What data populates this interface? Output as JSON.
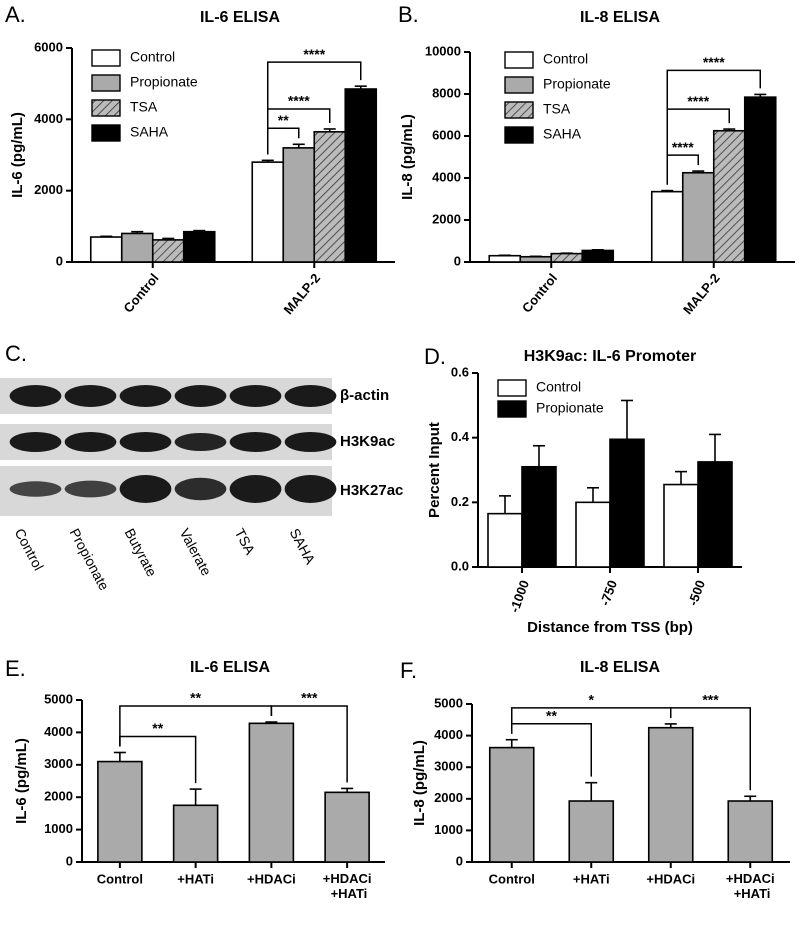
{
  "chart_data": [
    {
      "type": "bar",
      "panel": "A.",
      "title": "IL-6 ELISA",
      "y_label": "IL-6 (pg/mL)",
      "categories": [
        "Control",
        "MALP-2"
      ],
      "series": [
        {
          "name": "Control",
          "color": "#ffffff",
          "values": [
            700,
            2800
          ],
          "errors": [
            20,
            50
          ]
        },
        {
          "name": "Propionate",
          "color": "#aaaaaa",
          "values": [
            800,
            3200
          ],
          "errors": [
            50,
            100
          ]
        },
        {
          "name": "TSA",
          "color": "#bbbbbb",
          "pattern": "hatch",
          "values": [
            620,
            3650
          ],
          "errors": [
            40,
            80
          ]
        },
        {
          "name": "SAHA",
          "color": "#000000",
          "values": [
            850,
            4850
          ],
          "errors": [
            30,
            80
          ]
        }
      ],
      "annotations": [
        "**",
        "****",
        "****"
      ],
      "ylim": [
        0,
        6000
      ],
      "yticks": [
        0,
        2000,
        4000,
        6000
      ]
    },
    {
      "type": "bar",
      "panel": "B.",
      "title": "IL-8 ELISA",
      "y_label": "IL-8 (pg/mL)",
      "categories": [
        "Control",
        "MALP-2"
      ],
      "series": [
        {
          "name": "Control",
          "color": "#ffffff",
          "values": [
            300,
            3350
          ],
          "errors": [
            20,
            50
          ]
        },
        {
          "name": "Propionate",
          "color": "#aaaaaa",
          "values": [
            250,
            4250
          ],
          "errors": [
            20,
            80
          ]
        },
        {
          "name": "TSA",
          "color": "#bbbbbb",
          "pattern": "hatch",
          "values": [
            400,
            6250
          ],
          "errors": [
            20,
            80
          ]
        },
        {
          "name": "SAHA",
          "color": "#000000",
          "values": [
            550,
            7850
          ],
          "errors": [
            30,
            130
          ]
        }
      ],
      "annotations": [
        "****",
        "****",
        "****"
      ],
      "ylim": [
        0,
        10000
      ],
      "yticks": [
        0,
        2000,
        4000,
        6000,
        8000,
        10000
      ]
    },
    {
      "type": "bar",
      "panel": "D.",
      "title": "H3K9ac: IL-6 Promoter",
      "y_label": "Percent Input",
      "x_label": "Distance from TSS (bp)",
      "categories": [
        "-1000",
        "-750",
        "-500"
      ],
      "series": [
        {
          "name": "Control",
          "color": "#ffffff",
          "values": [
            0.165,
            0.2,
            0.255
          ],
          "errors": [
            0.055,
            0.045,
            0.04
          ]
        },
        {
          "name": "Propionate",
          "color": "#000000",
          "values": [
            0.31,
            0.395,
            0.325
          ],
          "errors": [
            0.065,
            0.12,
            0.085
          ]
        }
      ],
      "ylim": [
        0,
        0.6
      ],
      "yticks": [
        {
          "value": 0,
          "label": "0.0"
        },
        0.2,
        0.4,
        0.6
      ]
    },
    {
      "type": "bar",
      "panel": "E.",
      "title": "IL-6 ELISA",
      "y_label": "IL-6 (pg/mL)",
      "categories": [
        "Control",
        "+HATi",
        "+HDACi",
        "+HDACi +HATi"
      ],
      "series": [
        {
          "color": "#aaaaaa",
          "values": [
            3100,
            1750,
            4280,
            2150
          ],
          "errors": [
            280,
            500,
            40,
            120
          ]
        }
      ],
      "annotations": [
        "**",
        "**",
        "***"
      ],
      "ylim": [
        0,
        5000
      ],
      "yticks": [
        0,
        1000,
        2000,
        3000,
        4000,
        5000
      ]
    },
    {
      "type": "bar",
      "panel": "F.",
      "title": "IL-8 ELISA",
      "y_label": "IL-8 (pg/mL)",
      "categories": [
        "Control",
        "+HATi",
        "+HDACi",
        "+HDACi +HATi"
      ],
      "series": [
        {
          "color": "#aaaaaa",
          "values": [
            3620,
            1930,
            4250,
            1930
          ],
          "errors": [
            250,
            580,
            120,
            150
          ]
        }
      ],
      "annotations": [
        "**",
        "*",
        "***"
      ],
      "ylim": [
        0,
        5000
      ],
      "yticks": [
        0,
        1000,
        2000,
        3000,
        4000,
        5000
      ]
    }
  ],
  "blot": {
    "panel": "C.",
    "bands": [
      "β-actin",
      "H3K9ac",
      "H3K27ac"
    ],
    "lanes": [
      "Control",
      "Propionate",
      "Butyrate",
      "Valerate",
      "TSA",
      "SAHA"
    ]
  }
}
